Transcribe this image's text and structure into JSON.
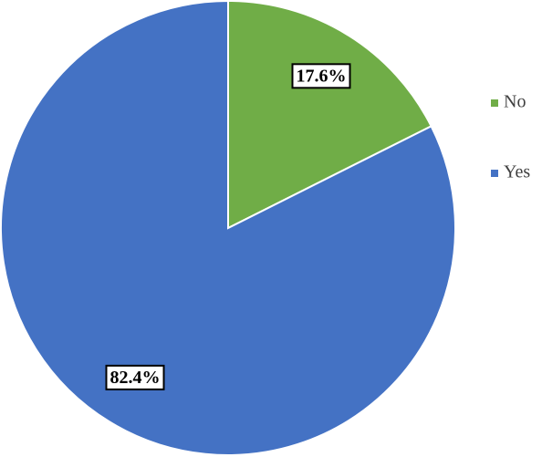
{
  "chart_data": {
    "type": "pie",
    "categories": [
      "No",
      "Yes"
    ],
    "values": [
      17.6,
      82.4
    ],
    "value_labels": [
      "17.6%",
      "82.4%"
    ],
    "colors": [
      "#70ad47",
      "#4472c4"
    ],
    "legend": "right"
  }
}
